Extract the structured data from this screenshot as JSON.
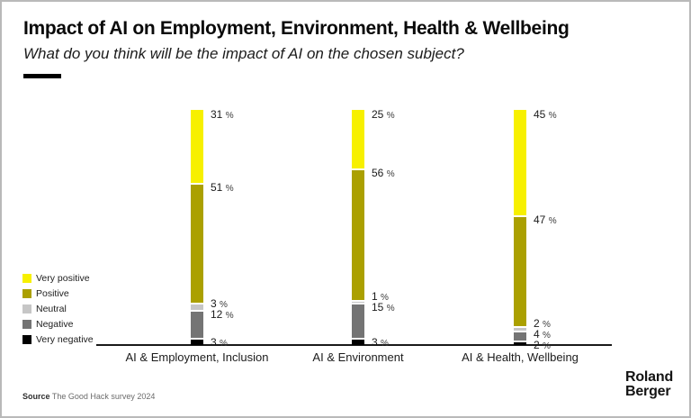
{
  "header": {
    "title": "Impact of AI on Employment, Environment, Health & Wellbeing",
    "subtitle": "What do you think will be the impact of AI on the chosen subject?"
  },
  "chart_data": {
    "type": "bar",
    "stacked": true,
    "orientation": "vertical",
    "unit": "%",
    "ylim": [
      0,
      100
    ],
    "grid": false,
    "legend_position": "left",
    "value_labels": true,
    "categories": [
      "AI & Employment, Inclusion",
      "AI & Environment",
      "AI & Health, Wellbeing"
    ],
    "series": [
      {
        "name": "Very positive",
        "color": "#F7F000",
        "values": [
          31,
          25,
          45
        ]
      },
      {
        "name": "Positive",
        "color": "#ABA000",
        "values": [
          51,
          56,
          47
        ]
      },
      {
        "name": "Neutral",
        "color": "#C6C6C6",
        "values": [
          3,
          1,
          2
        ]
      },
      {
        "name": "Negative",
        "color": "#747474",
        "values": [
          12,
          15,
          4
        ]
      },
      {
        "name": "Very negative",
        "color": "#000000",
        "values": [
          3,
          3,
          2
        ]
      }
    ]
  },
  "footer": {
    "source_label": "Source",
    "source_text": "The Good Hack survey 2024",
    "logo_line1": "Roland",
    "logo_line2": "Berger"
  }
}
